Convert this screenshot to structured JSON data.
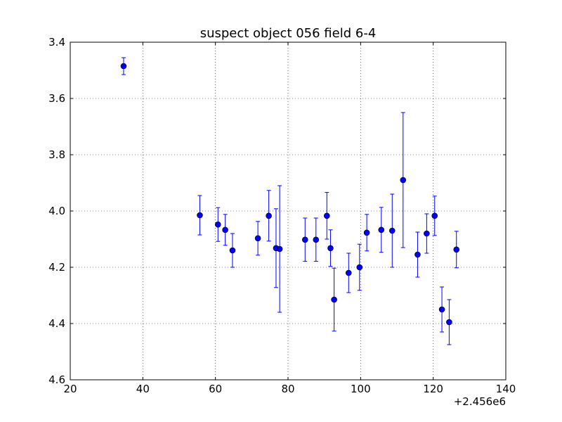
{
  "chart_data": {
    "type": "scatter",
    "title": "suspect object 056 field 6-4",
    "xlabel": "",
    "ylabel": "",
    "x_offset_label": "+2.456e6",
    "xlim": [
      20,
      140
    ],
    "ylim": [
      3.4,
      4.6
    ],
    "y_inverted": true,
    "grid": true,
    "x_ticks": [
      "20",
      "40",
      "60",
      "80",
      "100",
      "120",
      "140"
    ],
    "y_ticks": [
      "3.4",
      "3.6",
      "3.8",
      "4.0",
      "4.2",
      "4.4",
      "4.6"
    ],
    "series": [
      {
        "color": "#0000ff",
        "points": [
          {
            "x": 34.7,
            "y": 3.485,
            "err": 0.03
          },
          {
            "x": 55.7,
            "y": 4.015,
            "err": 0.07
          },
          {
            "x": 60.7,
            "y": 4.048,
            "err": 0.06
          },
          {
            "x": 62.7,
            "y": 4.067,
            "err": 0.055
          },
          {
            "x": 64.7,
            "y": 4.14,
            "err": 0.06
          },
          {
            "x": 71.7,
            "y": 4.097,
            "err": 0.06
          },
          {
            "x": 74.7,
            "y": 4.017,
            "err": 0.09
          },
          {
            "x": 76.7,
            "y": 4.132,
            "err": 0.14
          },
          {
            "x": 77.7,
            "y": 4.135,
            "err": 0.225
          },
          {
            "x": 84.7,
            "y": 4.102,
            "err": 0.077
          },
          {
            "x": 87.7,
            "y": 4.102,
            "err": 0.077
          },
          {
            "x": 90.7,
            "y": 4.017,
            "err": 0.083
          },
          {
            "x": 91.7,
            "y": 4.132,
            "err": 0.065
          },
          {
            "x": 92.7,
            "y": 4.315,
            "err": 0.112
          },
          {
            "x": 96.7,
            "y": 4.22,
            "err": 0.07
          },
          {
            "x": 99.7,
            "y": 4.2,
            "err": 0.082
          },
          {
            "x": 101.7,
            "y": 4.077,
            "err": 0.065
          },
          {
            "x": 105.7,
            "y": 4.067,
            "err": 0.08
          },
          {
            "x": 108.7,
            "y": 4.07,
            "err": 0.13
          },
          {
            "x": 111.7,
            "y": 3.89,
            "err": 0.24
          },
          {
            "x": 115.7,
            "y": 4.155,
            "err": 0.08
          },
          {
            "x": 118.2,
            "y": 4.08,
            "err": 0.07
          },
          {
            "x": 120.4,
            "y": 4.017,
            "err": 0.07
          },
          {
            "x": 122.4,
            "y": 4.35,
            "err": 0.08
          },
          {
            "x": 124.4,
            "y": 4.395,
            "err": 0.08
          },
          {
            "x": 126.4,
            "y": 4.137,
            "err": 0.065
          }
        ]
      }
    ]
  }
}
